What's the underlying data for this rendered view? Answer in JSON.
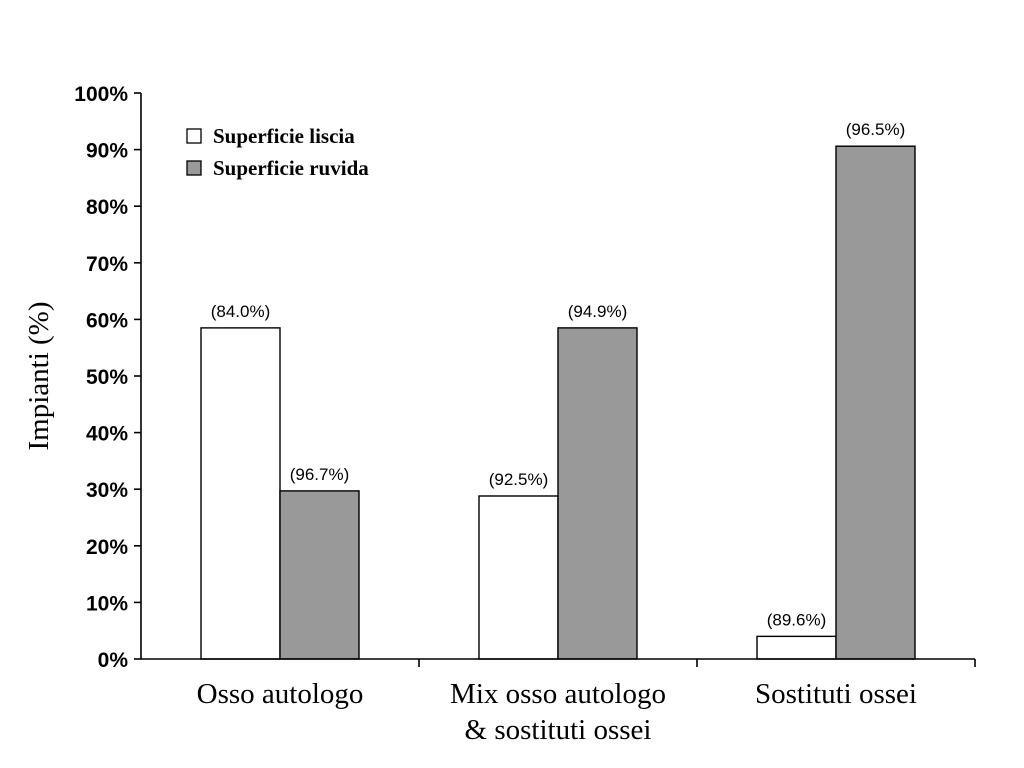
{
  "chart_data": {
    "type": "bar",
    "ylabel": "Impianti (%)",
    "ylim": [
      0,
      100
    ],
    "y_tick_labels": [
      "0%",
      "10%",
      "20%",
      "30%",
      "40%",
      "50%",
      "60%",
      "70%",
      "80%",
      "90%",
      "100%"
    ],
    "categories": [
      [
        "Osso autologo"
      ],
      [
        "Mix osso autologo",
        "& sostituti ossei"
      ],
      [
        "Sostituti ossei"
      ]
    ],
    "series": [
      {
        "name": "Superficie liscia",
        "color": "#ffffff",
        "values": [
          58.5,
          28.8,
          4
        ],
        "data_labels": [
          "(84.0%)",
          "(92.5%)",
          "(89.6%)"
        ]
      },
      {
        "name": "Superficie ruvida",
        "color": "#999999",
        "values": [
          29.7,
          58.5,
          90.6
        ],
        "data_labels": [
          "(96.7%)",
          "(94.9%)",
          "(96.5%)"
        ]
      }
    ],
    "legend_position": "top-left",
    "grid": false
  }
}
